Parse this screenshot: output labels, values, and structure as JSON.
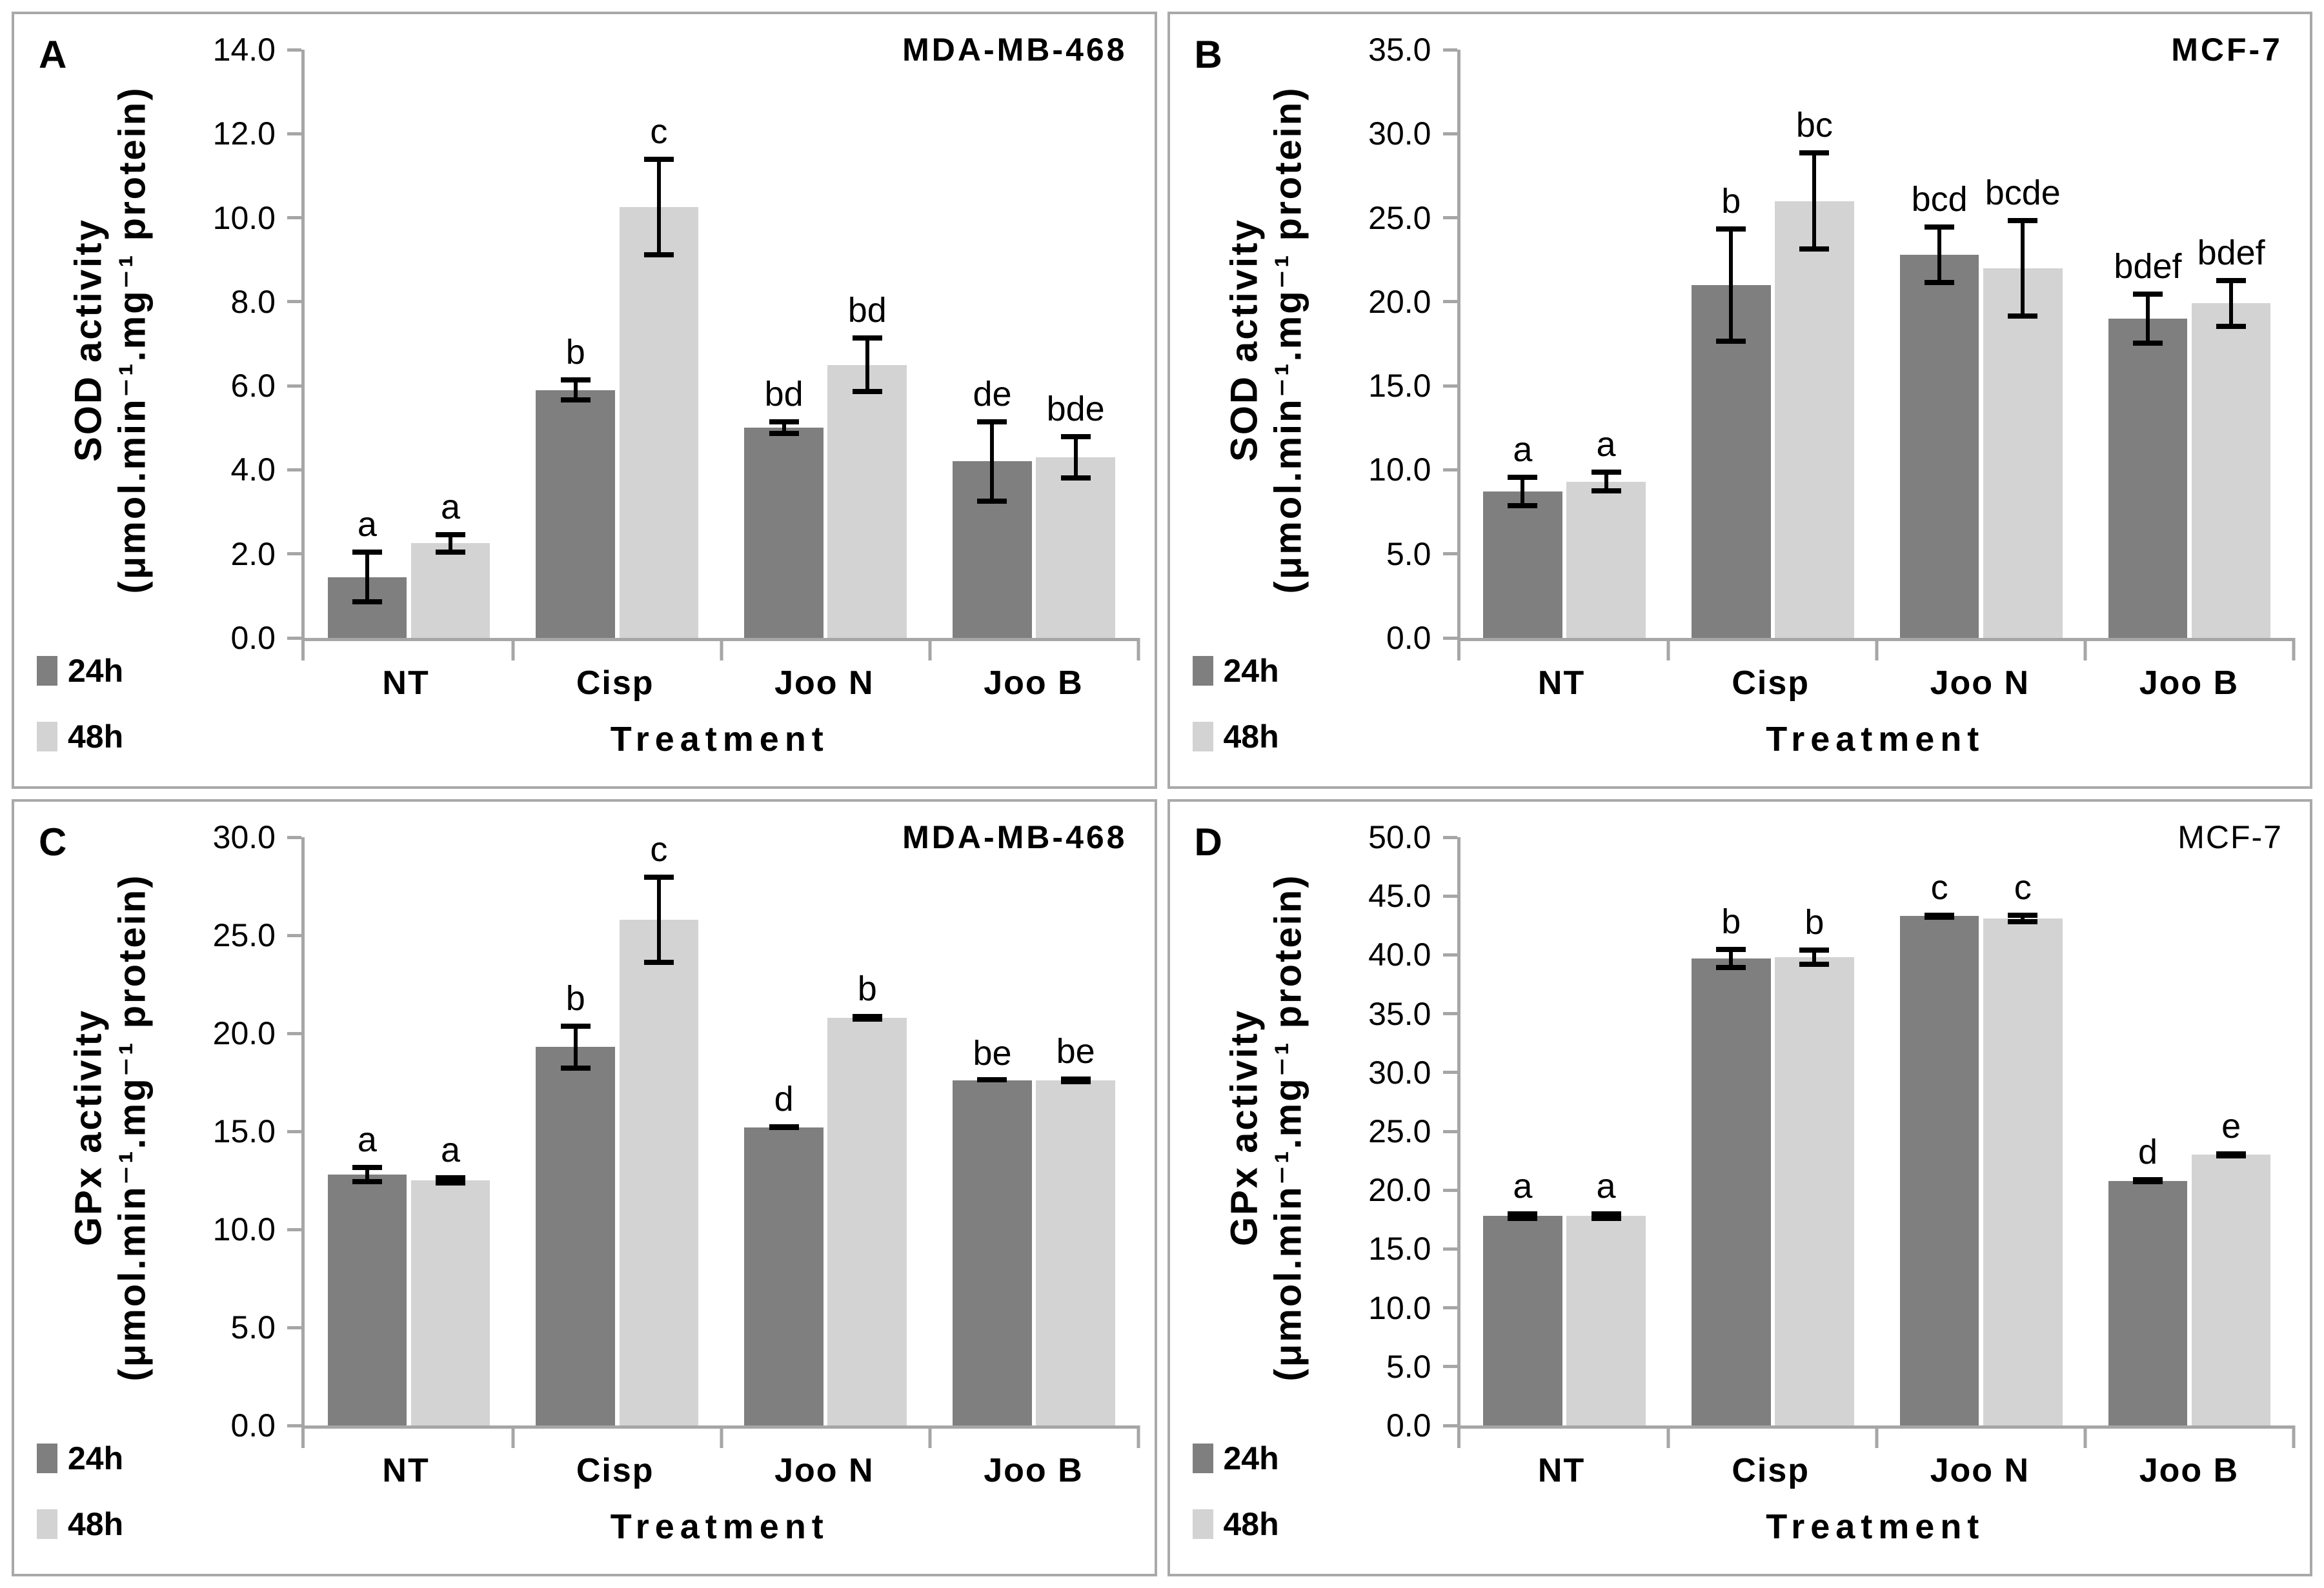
{
  "figure": {
    "x_title": "Treatment",
    "categories": [
      "NT",
      "Cisp",
      "Joo N",
      "Joo B"
    ],
    "legend": [
      {
        "label": "24h",
        "color": "#7f7f7f"
      },
      {
        "label": "48h",
        "color": "#d3d3d3"
      }
    ],
    "colors": {
      "axis": "#a6a6a6",
      "panel_border": "#a9a9a9",
      "bar_24h": "#7f7f7f",
      "bar_48h": "#d3d3d3",
      "error_bar": "#000000"
    }
  },
  "chart_data": [
    {
      "type": "bar",
      "panel": "A",
      "title": "MDA-MB-468",
      "title_bold": true,
      "ylabel": "SOD activity",
      "ylabel_units": "(μmol.min⁻¹.mg⁻¹ protein)",
      "xlabel": "Treatment",
      "ylim": [
        0,
        14.0
      ],
      "ytick_step": 2.0,
      "categories": [
        "NT",
        "Cisp",
        "Joo N",
        "Joo B"
      ],
      "series": [
        {
          "name": "24h",
          "values": [
            1.45,
            5.9,
            5.0,
            4.2
          ],
          "errors": [
            0.65,
            0.3,
            0.2,
            1.0
          ],
          "letters": [
            "a",
            "b",
            "bd",
            "de"
          ]
        },
        {
          "name": "48h",
          "values": [
            2.25,
            10.25,
            6.5,
            4.3
          ],
          "errors": [
            0.27,
            1.2,
            0.7,
            0.55
          ],
          "letters": [
            "a",
            "c",
            "bd",
            "bde"
          ]
        }
      ]
    },
    {
      "type": "bar",
      "panel": "B",
      "title": "MCF-7",
      "title_bold": true,
      "ylabel": "SOD activity",
      "ylabel_units": "(μmol.min⁻¹.mg⁻¹ protein)",
      "xlabel": "Treatment",
      "ylim": [
        0,
        35.0
      ],
      "ytick_step": 5.0,
      "categories": [
        "NT",
        "Cisp",
        "Joo N",
        "Joo B"
      ],
      "series": [
        {
          "name": "24h",
          "values": [
            8.7,
            21.0,
            22.8,
            19.0
          ],
          "errors": [
            1.0,
            3.5,
            1.8,
            1.6
          ],
          "letters": [
            "a",
            "b",
            "bcd",
            "bdef"
          ]
        },
        {
          "name": "48h",
          "values": [
            9.3,
            26.0,
            22.0,
            19.9
          ],
          "errors": [
            0.7,
            3.0,
            3.0,
            1.5
          ],
          "letters": [
            "a",
            "bc",
            "bcde",
            "bdef"
          ]
        }
      ]
    },
    {
      "type": "bar",
      "panel": "C",
      "title": "MDA-MB-468",
      "title_bold": true,
      "ylabel": "GPx activity",
      "ylabel_units": "(μmol.min⁻¹.mg⁻¹ protein)",
      "xlabel": "Treatment",
      "ylim": [
        0,
        30.0
      ],
      "ytick_step": 5.0,
      "categories": [
        "NT",
        "Cisp",
        "Joo N",
        "Joo B"
      ],
      "series": [
        {
          "name": "24h",
          "values": [
            12.8,
            19.3,
            15.2,
            17.6
          ],
          "errors": [
            0.5,
            1.2,
            0.15,
            0.1
          ],
          "letters": [
            "a",
            "b",
            "d",
            "be"
          ]
        },
        {
          "name": "48h",
          "values": [
            12.5,
            25.8,
            20.8,
            17.6
          ],
          "errors": [
            0.25,
            2.3,
            0.2,
            0.2
          ],
          "letters": [
            "a",
            "c",
            "b",
            "be"
          ]
        }
      ]
    },
    {
      "type": "bar",
      "panel": "D",
      "title": "MCF-7",
      "title_bold": false,
      "ylabel": "GPx activity",
      "ylabel_units": "(μmol.min⁻¹.mg⁻¹ protein)",
      "xlabel": "Treatment",
      "ylim": [
        0,
        50.0
      ],
      "ytick_step": 5.0,
      "categories": [
        "NT",
        "Cisp",
        "Joo N",
        "Joo B"
      ],
      "series": [
        {
          "name": "24h",
          "values": [
            17.8,
            39.7,
            43.3,
            20.8
          ],
          "errors": [
            0.4,
            1.0,
            0.3,
            0.3
          ],
          "letters": [
            "a",
            "b",
            "c",
            "d"
          ]
        },
        {
          "name": "48h",
          "values": [
            17.8,
            39.8,
            43.1,
            23.0
          ],
          "errors": [
            0.4,
            0.8,
            0.5,
            0.3
          ],
          "letters": [
            "a",
            "b",
            "c",
            "e"
          ]
        }
      ]
    }
  ]
}
